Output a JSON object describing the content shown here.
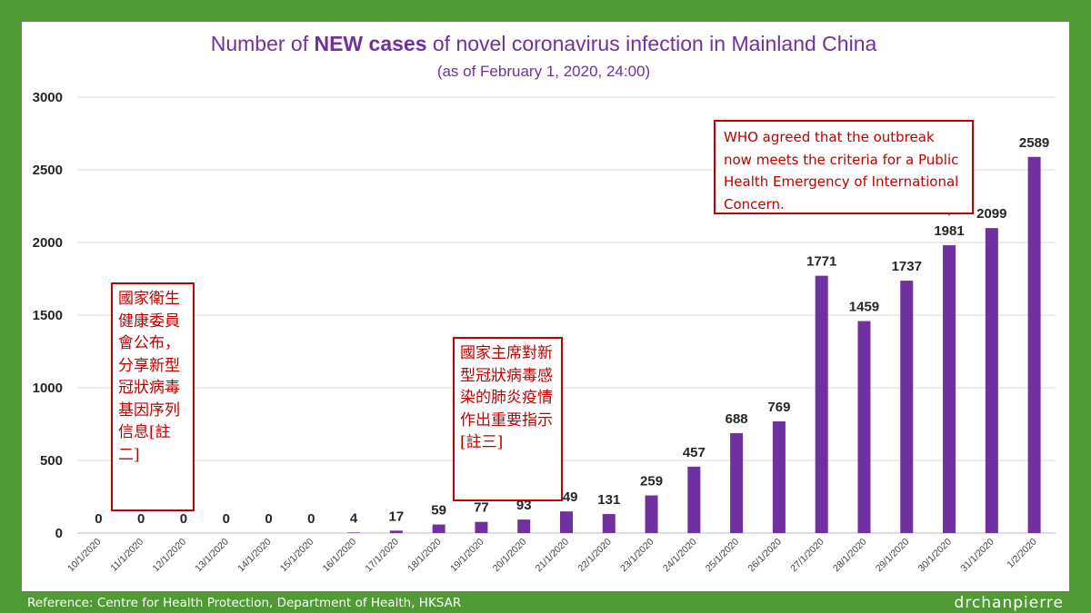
{
  "chart_data": {
    "type": "bar",
    "title_prefix": "Number of ",
    "title_bold": "NEW cases",
    "title_suffix": " of novel coronavirus infection in Mainland China",
    "subtitle": "(as of February  1, 2020, 24:00)",
    "categories": [
      "10/1/2020",
      "11/1/2020",
      "12/1/2020",
      "13/1/2020",
      "14/1/2020",
      "15/1/2020",
      "16/1/2020",
      "17/1/2020",
      "18/1/2020",
      "19/1/2020",
      "20/1/2020",
      "21/1/2020",
      "22/1/2020",
      "23/1/2020",
      "24/1/2020",
      "25/1/2020",
      "26/1/2020",
      "27/1/2020",
      "28/1/2020",
      "29/1/2020",
      "30/1/2020",
      "31/1/2020",
      "1/2/2020"
    ],
    "values": [
      0,
      0,
      0,
      0,
      0,
      0,
      4,
      17,
      59,
      77,
      93,
      149,
      131,
      259,
      457,
      688,
      769,
      1771,
      1459,
      1737,
      1981,
      2099,
      2589
    ],
    "ylim": [
      0,
      3000
    ],
    "yticks": [
      0,
      500,
      1000,
      1500,
      2000,
      2500,
      3000
    ],
    "grid": true,
    "bar_color": "#7030a0",
    "title_color": "#7030a0",
    "annotation_color": "#c00000",
    "annotations": [
      {
        "text": "國家衛生健康委員會公布，分享新型冠狀病毒基因序列信息[註二]"
      },
      {
        "text": "國家主席對新型冠狀病毒感染的肺炎疫情作出重要指示[註三]"
      },
      {
        "text": "WHO agreed that the outbreak now meets the criteria for a Public Health Emergency of International Concern.",
        "points_to": "30/1/2020"
      }
    ]
  },
  "footer": {
    "reference": "Reference: Centre for Health Protection, Department of Health, HKSAR",
    "signature": "drchanpierre"
  },
  "background_color": "#4f9a35"
}
